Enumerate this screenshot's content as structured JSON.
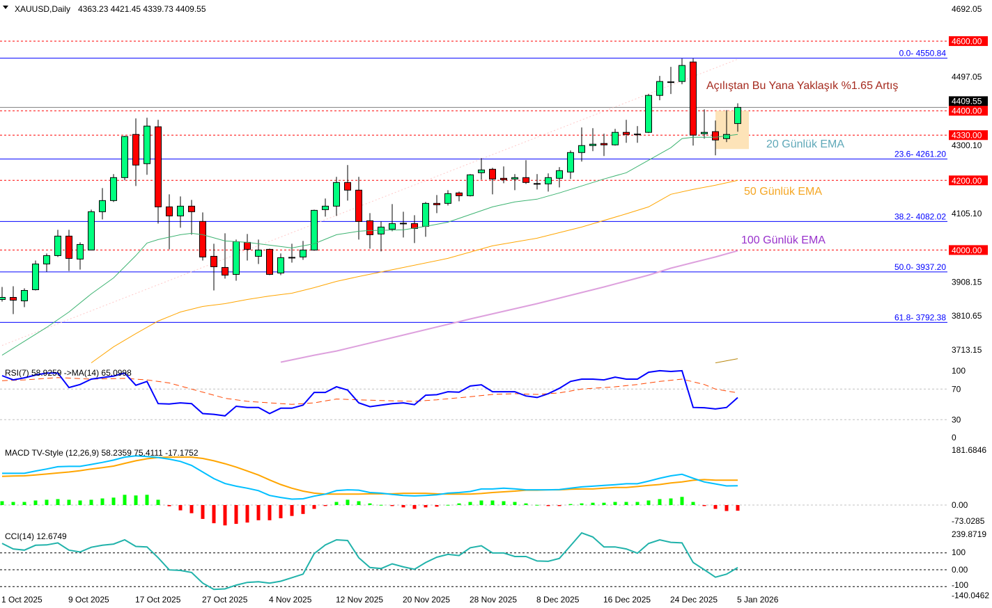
{
  "header": {
    "symbol": "XAUUSD,Daily",
    "ohlc": "4363.23 4421.45 4339.73 4409.55",
    "menu_icon": "triangle-down-icon"
  },
  "colors": {
    "bull": "#00ff7f",
    "bear": "#ff0000",
    "level": "#ff0000",
    "fib": "#0000ff",
    "ema20": "#3cb371",
    "ema50": "#ffa500",
    "ema100": "#dda0dd",
    "ema_extra": "#b8860b",
    "trendline": "#ffc8c8",
    "box": "#fde3b8",
    "rsi": "#0000ff",
    "rsi_ma": "#ff4500",
    "macd": "#00bfff",
    "signal": "#ffa500",
    "hist_pos": "#00ff00",
    "hist_neg": "#ff0000",
    "cci": "#20b2aa",
    "annotation_main": "#a52a1e",
    "annotation_ema20": "#5fa8b8",
    "annotation_ema50": "#f5a623",
    "annotation_ema100": "#9932cc"
  },
  "annotations": {
    "performance": "Açılıştan Bu Yana Yaklaşık %1.65 Artış",
    "ema20": "20 Günlük EMA",
    "ema50": "50 Günlük EMA",
    "ema100": "100 Günlük EMA"
  },
  "chart_data": {
    "type": "candlestick",
    "title": "XAUUSD,Daily",
    "price_axis": {
      "labels": [
        4692.05,
        4497.05,
        4300.1,
        4105.1,
        3908.15,
        3810.65,
        3713.15
      ],
      "range": [
        3713.15,
        4692.05
      ],
      "current_price": 4409.55
    },
    "levels": [
      {
        "value": 4600,
        "label": "4600.00"
      },
      {
        "value": 4400,
        "label": "4400.00"
      },
      {
        "value": 4330,
        "label": "4330.00"
      },
      {
        "value": 4200,
        "label": "4200.00"
      },
      {
        "value": 4000,
        "label": "4000.00"
      }
    ],
    "fib": [
      {
        "value": 4550.84,
        "label": "0.0- 4550.84"
      },
      {
        "value": 4261.2,
        "label": "23.6- 4261.20"
      },
      {
        "value": 4082.02,
        "label": "38.2- 4082.02"
      },
      {
        "value": 3937.2,
        "label": "50.0- 3937.20"
      },
      {
        "value": 3792.38,
        "label": "61.8- 3792.38"
      }
    ],
    "dates": [
      {
        "index": 0,
        "label": "1 Oct 2025"
      },
      {
        "index": 6,
        "label": "9 Oct 2025"
      },
      {
        "index": 12,
        "label": "17 Oct 2025"
      },
      {
        "index": 18,
        "label": "27 Oct 2025"
      },
      {
        "index": 24,
        "label": "4 Nov 2025"
      },
      {
        "index": 30,
        "label": "12 Nov 2025"
      },
      {
        "index": 36,
        "label": "20 Nov 2025"
      },
      {
        "index": 42,
        "label": "28 Nov 2025"
      },
      {
        "index": 48,
        "label": "8 Dec 2025"
      },
      {
        "index": 54,
        "label": "16 Dec 2025"
      },
      {
        "index": 60,
        "label": "24 Dec 2025"
      },
      {
        "index": 66,
        "label": "5 Jan 2026"
      }
    ],
    "candles_ohlc": [
      [
        3858,
        3894,
        3852,
        3864
      ],
      [
        3864,
        3896,
        3816,
        3856
      ],
      [
        3854,
        3890,
        3836,
        3884
      ],
      [
        3886,
        3970,
        3884,
        3960
      ],
      [
        3960,
        3990,
        3938,
        3984
      ],
      [
        3984,
        4058,
        3980,
        4040
      ],
      [
        4040,
        4058,
        3940,
        3976
      ],
      [
        3974,
        4022,
        3944,
        4016
      ],
      [
        4000,
        4116,
        4000,
        4110
      ],
      [
        4110,
        4178,
        4088,
        4142
      ],
      [
        4142,
        4218,
        4138,
        4208
      ],
      [
        4208,
        4328,
        4200,
        4326
      ],
      [
        4332,
        4378,
        4184,
        4244
      ],
      [
        4248,
        4380,
        4216,
        4356
      ],
      [
        4354,
        4374,
        4076,
        4124
      ],
      [
        4124,
        4160,
        4002,
        4098
      ],
      [
        4098,
        4154,
        4064,
        4126
      ],
      [
        4126,
        4144,
        4044,
        4110
      ],
      [
        4082,
        4108,
        3970,
        3980
      ],
      [
        3982,
        4018,
        3884,
        3952
      ],
      [
        3950,
        4048,
        3918,
        3928
      ],
      [
        3930,
        4030,
        3912,
        4024
      ],
      [
        4022,
        4046,
        3970,
        4002
      ],
      [
        3982,
        4030,
        3960,
        4000
      ],
      [
        4002,
        4004,
        3928,
        3930
      ],
      [
        3934,
        3990,
        3928,
        3978
      ],
      [
        3978,
        4018,
        3964,
        3978
      ],
      [
        3980,
        4026,
        3972,
        4000
      ],
      [
        4000,
        4116,
        3998,
        4114
      ],
      [
        4116,
        4148,
        4096,
        4126
      ],
      [
        4126,
        4210,
        4098,
        4194
      ],
      [
        4194,
        4244,
        4142,
        4172
      ],
      [
        4172,
        4210,
        4030,
        4082
      ],
      [
        4084,
        4106,
        4004,
        4044
      ],
      [
        4046,
        4082,
        3996,
        4066
      ],
      [
        4060,
        4132,
        4054,
        4076
      ],
      [
        4076,
        4110,
        4036,
        4076
      ],
      [
        4076,
        4100,
        4020,
        4062
      ],
      [
        4068,
        4138,
        4038,
        4134
      ],
      [
        4134,
        4158,
        4106,
        4130
      ],
      [
        4134,
        4172,
        4128,
        4162
      ],
      [
        4164,
        4168,
        4140,
        4156
      ],
      [
        4156,
        4218,
        4154,
        4216
      ],
      [
        4222,
        4264,
        4202,
        4230
      ],
      [
        4232,
        4236,
        4160,
        4204
      ],
      [
        4206,
        4240,
        4192,
        4202
      ],
      [
        4204,
        4218,
        4172,
        4208
      ],
      [
        4208,
        4258,
        4190,
        4194
      ],
      [
        4190,
        4218,
        4174,
        4190
      ],
      [
        4190,
        4220,
        4168,
        4208
      ],
      [
        4206,
        4238,
        4180,
        4228
      ],
      [
        4224,
        4286,
        4204,
        4280
      ],
      [
        4280,
        4352,
        4254,
        4300
      ],
      [
        4300,
        4350,
        4284,
        4304
      ],
      [
        4306,
        4334,
        4270,
        4302
      ],
      [
        4302,
        4348,
        4300,
        4338
      ],
      [
        4338,
        4374,
        4308,
        4332
      ],
      [
        4332,
        4356,
        4308,
        4332
      ],
      [
        4338,
        4448,
        4336,
        4444
      ],
      [
        4444,
        4500,
        4430,
        4484
      ],
      [
        4482,
        4526,
        4448,
        4482
      ],
      [
        4484,
        4550,
        4476,
        4530
      ],
      [
        4540,
        4550,
        4300,
        4330
      ],
      [
        4334,
        4404,
        4320,
        4338
      ],
      [
        4340,
        4372,
        4272,
        4316
      ],
      [
        4320,
        4402,
        4310,
        4332
      ],
      [
        4363.23,
        4421.45,
        4339.73,
        4409.55
      ]
    ],
    "ema20": [
      [
        0,
        3698
      ],
      [
        2,
        3738
      ],
      [
        4,
        3778
      ],
      [
        5,
        3800
      ],
      [
        6,
        3822
      ],
      [
        8,
        3874
      ],
      [
        10,
        3920
      ],
      [
        12,
        3984
      ],
      [
        13,
        4020
      ],
      [
        14,
        4030
      ],
      [
        16,
        4044
      ],
      [
        17,
        4048
      ],
      [
        18,
        4044
      ],
      [
        20,
        4026
      ],
      [
        22,
        4022
      ],
      [
        24,
        4014
      ],
      [
        26,
        4006
      ],
      [
        28,
        4018
      ],
      [
        30,
        4044
      ],
      [
        32,
        4054
      ],
      [
        33,
        4056
      ],
      [
        36,
        4058
      ],
      [
        38,
        4068
      ],
      [
        40,
        4080
      ],
      [
        42,
        4102
      ],
      [
        44,
        4124
      ],
      [
        46,
        4138
      ],
      [
        48,
        4146
      ],
      [
        50,
        4164
      ],
      [
        52,
        4184
      ],
      [
        54,
        4204
      ],
      [
        56,
        4222
      ],
      [
        58,
        4258
      ],
      [
        60,
        4294
      ],
      [
        61,
        4320
      ],
      [
        62,
        4324
      ],
      [
        64,
        4324
      ],
      [
        66,
        4332
      ]
    ],
    "ema50": [
      [
        8,
        3676
      ],
      [
        10,
        3722
      ],
      [
        12,
        3760
      ],
      [
        14,
        3796
      ],
      [
        16,
        3822
      ],
      [
        18,
        3838
      ],
      [
        20,
        3846
      ],
      [
        22,
        3858
      ],
      [
        24,
        3868
      ],
      [
        26,
        3876
      ],
      [
        28,
        3892
      ],
      [
        30,
        3910
      ],
      [
        32,
        3924
      ],
      [
        36,
        3950
      ],
      [
        40,
        3976
      ],
      [
        44,
        4012
      ],
      [
        48,
        4034
      ],
      [
        52,
        4066
      ],
      [
        56,
        4104
      ],
      [
        58,
        4124
      ],
      [
        60,
        4160
      ],
      [
        62,
        4174
      ],
      [
        64,
        4186
      ],
      [
        66,
        4200
      ]
    ],
    "ema100": [
      [
        25,
        3678
      ],
      [
        28,
        3698
      ],
      [
        30,
        3710
      ],
      [
        36,
        3756
      ],
      [
        42,
        3802
      ],
      [
        48,
        3846
      ],
      [
        54,
        3894
      ],
      [
        58,
        3928
      ],
      [
        60,
        3948
      ],
      [
        62,
        3964
      ],
      [
        64,
        3980
      ],
      [
        66,
        3998
      ]
    ],
    "ema_extra": [
      [
        64,
        3676
      ],
      [
        66,
        3688
      ]
    ],
    "trendline": [
      [
        0,
        3726
      ],
      [
        66,
        4548
      ]
    ],
    "box": {
      "from_index": 64,
      "to_index": 67,
      "low": 4290,
      "high": 4400
    },
    "rsi": {
      "title": "RSI(7) 58.9259  ->MA(14) 65.0998",
      "axis_labels": [
        100,
        70,
        30,
        0
      ],
      "levels": [
        70,
        30
      ],
      "values": [
        87.5,
        82,
        84.7,
        88.4,
        91,
        91,
        72,
        76,
        83,
        85,
        87,
        91,
        75,
        80,
        51,
        50.5,
        52,
        51,
        38,
        37,
        35,
        47.5,
        46,
        46,
        38,
        45,
        45,
        49,
        65.6,
        65.6,
        73,
        68.7,
        52,
        47,
        49,
        51,
        52,
        49.6,
        62,
        62.6,
        66.5,
        66,
        74,
        75.6,
        66.5,
        66.5,
        66.5,
        61,
        59,
        64,
        71,
        80,
        83,
        83,
        82,
        85.6,
        83,
        83,
        92,
        94,
        93,
        94,
        46,
        45.6,
        44,
        46,
        58.93
      ],
      "ma": [
        [
          0,
          81
        ],
        [
          2,
          82
        ],
        [
          5,
          85
        ],
        [
          8,
          83
        ],
        [
          11,
          84
        ],
        [
          13,
          82
        ],
        [
          15,
          78
        ],
        [
          17,
          70
        ],
        [
          20,
          58
        ],
        [
          22,
          54
        ],
        [
          26,
          50
        ],
        [
          28,
          52
        ],
        [
          30,
          57
        ],
        [
          34,
          55
        ],
        [
          37,
          54
        ],
        [
          39,
          56
        ],
        [
          42,
          60
        ],
        [
          44,
          63
        ],
        [
          46,
          64
        ],
        [
          48,
          63
        ],
        [
          50,
          65
        ],
        [
          52,
          70
        ],
        [
          55,
          73
        ],
        [
          57,
          76
        ],
        [
          59,
          80
        ],
        [
          61,
          83
        ],
        [
          63,
          76
        ],
        [
          64,
          70
        ],
        [
          66,
          65.1
        ]
      ]
    },
    "macd": {
      "title": "MACD TV-Style (12,26,9) 58.2359 75.4111 -17.1752",
      "axis_labels": [
        "181.6846",
        "0.00",
        "-73.0285"
      ],
      "axis_values": [
        181.6846,
        0,
        -73.0285
      ],
      "macd": [
        96,
        96,
        96,
        103,
        109,
        116,
        117,
        117,
        123,
        129,
        136,
        145,
        149,
        147,
        144,
        139,
        132,
        120,
        100,
        80,
        65,
        57,
        51,
        43.5,
        29,
        23,
        18,
        19,
        27,
        33,
        43.5,
        46,
        45,
        38,
        36,
        32,
        29,
        27.5,
        29,
        31,
        36,
        38,
        41,
        48.6,
        48.6,
        51,
        49,
        46,
        46,
        46,
        47,
        51,
        55,
        57,
        59.5,
        61.6,
        64.5,
        64.5,
        72.5,
        81,
        88.5,
        93,
        81,
        70,
        64,
        58,
        58.24
      ],
      "signal": [
        87,
        88,
        88.5,
        91,
        94,
        97,
        100,
        104,
        109,
        113,
        118,
        126,
        134,
        140,
        144,
        145,
        145,
        145,
        141,
        134,
        125,
        115,
        103,
        91,
        76,
        62,
        51,
        42,
        36,
        33,
        33,
        33,
        33,
        34,
        34,
        34,
        35.5,
        35.5,
        35.5,
        34,
        33,
        33,
        33,
        35,
        38,
        40,
        42,
        45,
        45,
        46,
        46,
        48,
        48.6,
        48.6,
        51,
        53,
        53,
        56,
        59.5,
        62,
        66.7,
        70,
        75,
        77,
        75.4,
        75.4,
        75.41
      ],
      "histogram": [
        11.6,
        9.4,
        9.4,
        13.8,
        16,
        18,
        16,
        13.8,
        16,
        20,
        22.5,
        31,
        29,
        31,
        16,
        -3.6,
        -16,
        -24.7,
        -42,
        -55,
        -61.6,
        -57,
        -53,
        -46,
        -46,
        -40,
        -33,
        -27,
        -11.6,
        -2.9,
        9.4,
        16,
        11.6,
        5,
        0.5,
        -3,
        -7,
        -11.6,
        -7,
        -5,
        0.5,
        5,
        9.4,
        13.8,
        13.8,
        11.6,
        9.4,
        5,
        0.5,
        -3,
        -3,
        3,
        5,
        7,
        7,
        9.4,
        9.4,
        9.4,
        13.8,
        18,
        20,
        24.7,
        9.4,
        -3,
        -11.6,
        -18,
        -17.18
      ]
    },
    "cci": {
      "title": "CCI(14) 12.6749",
      "axis_labels": [
        "239.8719",
        "100",
        "0.00",
        "-100",
        "-140.0462"
      ],
      "axis_values": [
        239.8719,
        100,
        0,
        -100,
        -140.0462
      ],
      "levels": [
        100,
        0,
        -100
      ],
      "values": [
        156,
        123,
        116,
        145,
        147,
        159,
        116,
        105,
        133,
        145,
        152,
        177,
        138,
        135,
        71,
        -1,
        -4,
        -16,
        -79,
        -116,
        -113,
        -91,
        -75,
        -71,
        -79,
        -68,
        -47,
        -26,
        95,
        147,
        177,
        173,
        71,
        13,
        7,
        35,
        17,
        3,
        43,
        74,
        91,
        84,
        130,
        142,
        99,
        99,
        78,
        78,
        52,
        50,
        67,
        142,
        218,
        194,
        135,
        135,
        123,
        98,
        155,
        177,
        162,
        159,
        43,
        0,
        -44,
        -26,
        12.67
      ]
    }
  }
}
